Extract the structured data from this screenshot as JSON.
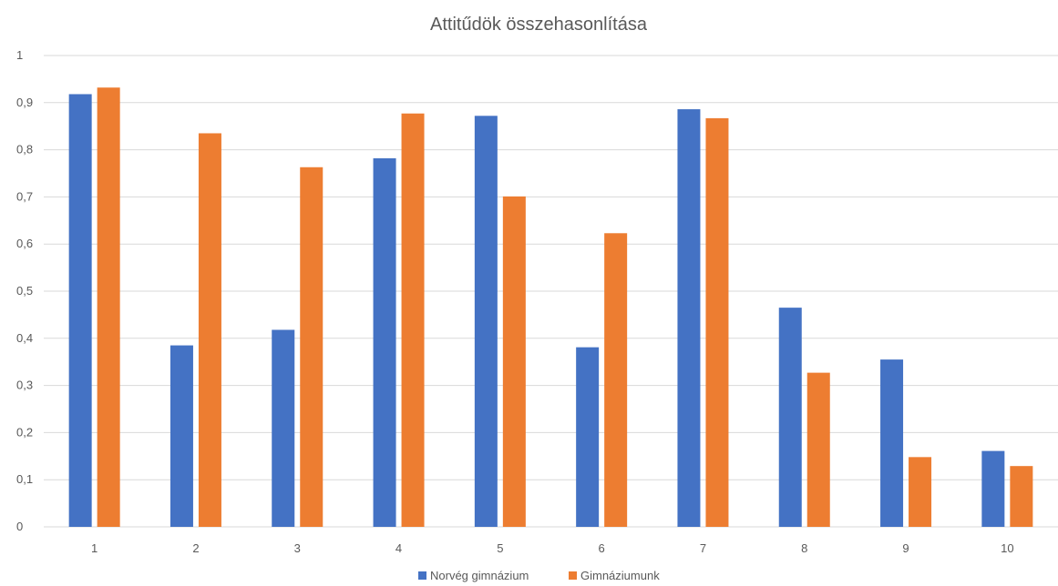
{
  "chart_data": {
    "type": "bar",
    "title": "Attitűdök összehasonlítása",
    "xlabel": "",
    "ylabel": "",
    "categories": [
      "1",
      "2",
      "3",
      "4",
      "5",
      "6",
      "7",
      "8",
      "9",
      "10"
    ],
    "series": [
      {
        "name": "Norvég gimnázium",
        "color": "#4472c4",
        "values": [
          0.918,
          0.385,
          0.418,
          0.782,
          0.872,
          0.381,
          0.886,
          0.465,
          0.355,
          0.161
        ]
      },
      {
        "name": "Gimnáziumunk",
        "color": "#ed7d31",
        "values": [
          0.932,
          0.835,
          0.763,
          0.877,
          0.701,
          0.623,
          0.867,
          0.327,
          0.148,
          0.129
        ]
      }
    ],
    "ylim": [
      0,
      1
    ],
    "yticks": [
      "0",
      "0,1",
      "0,2",
      "0,3",
      "0,4",
      "0,5",
      "0,6",
      "0,7",
      "0,8",
      "0,9",
      "1"
    ],
    "grid": true,
    "legend_position": "bottom"
  }
}
